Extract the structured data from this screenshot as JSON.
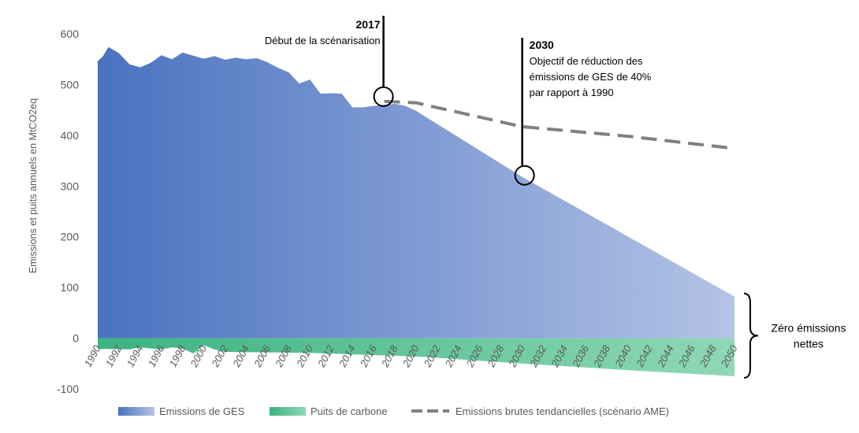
{
  "chart_data": {
    "type": "area",
    "ylabel": "Emissions et puits annuels en MtCO2eq",
    "xlabel": "",
    "ylim": [
      -100,
      600
    ],
    "yticks": [
      600,
      500,
      400,
      300,
      200,
      100,
      0,
      -100
    ],
    "xlim": [
      1990,
      2050
    ],
    "xticks": [
      1990,
      1992,
      1994,
      1996,
      1998,
      2000,
      2002,
      2004,
      2006,
      2008,
      2010,
      2012,
      2014,
      2016,
      2018,
      2020,
      2022,
      2024,
      2026,
      2028,
      2030,
      2032,
      2034,
      2036,
      2038,
      2040,
      2042,
      2044,
      2046,
      2048,
      2050
    ],
    "series": [
      {
        "name": "Emissions de GES",
        "kind": "area",
        "color": "#4a72c0",
        "color_end": "#b4c3e6",
        "x": [
          1990,
          1990.5,
          1991,
          1992,
          1993,
          1994,
          1995,
          1996,
          1997,
          1998,
          1999,
          2000,
          2001,
          2002,
          2003,
          2004,
          2005,
          2006,
          2007,
          2008,
          2009,
          2010,
          2011,
          2012,
          2013,
          2014,
          2015,
          2016,
          2017,
          2018,
          2019,
          2020,
          2030,
          2040,
          2050
        ],
        "values": [
          546,
          556,
          574,
          562,
          540,
          534,
          543,
          558,
          550,
          563,
          557,
          551,
          556,
          549,
          553,
          550,
          552,
          544,
          533,
          524,
          502,
          510,
          482,
          483,
          482,
          455,
          455,
          458,
          460,
          462,
          458,
          448,
          318,
          200,
          82
        ]
      },
      {
        "name": "Puits de carbone",
        "kind": "area",
        "color": "#3bb381",
        "color_end": "#8fd8b6",
        "x": [
          1990,
          1993,
          1994,
          1996,
          1997,
          1998,
          1999,
          2000,
          2001,
          2002,
          2010,
          2020,
          2030,
          2040,
          2050
        ],
        "values": [
          -21,
          -22,
          -18,
          -22,
          -18,
          -20,
          -30,
          -14,
          -22,
          -27,
          -29,
          -36,
          -50,
          -63,
          -75
        ]
      },
      {
        "name": "Emissions brutes tendancielles (scénario AME)",
        "kind": "dashed-line",
        "color": "#808080",
        "x": [
          2017,
          2020,
          2030,
          2040,
          2050
        ],
        "values": [
          467,
          464,
          417,
          398,
          374
        ]
      }
    ],
    "annotations": [
      {
        "year_label": "2017",
        "text": "Début de la scénarisation",
        "x": 2017,
        "y": 467
      },
      {
        "year_label": "2030",
        "text_lines": [
          "Objectif de réduction des",
          "émissions de GES de 40%",
          "par rapport à 1990"
        ],
        "x": 2030,
        "y": 318
      }
    ],
    "brace_label": [
      "Zéro émissions",
      "nettes"
    ],
    "legend_position": "bottom"
  }
}
